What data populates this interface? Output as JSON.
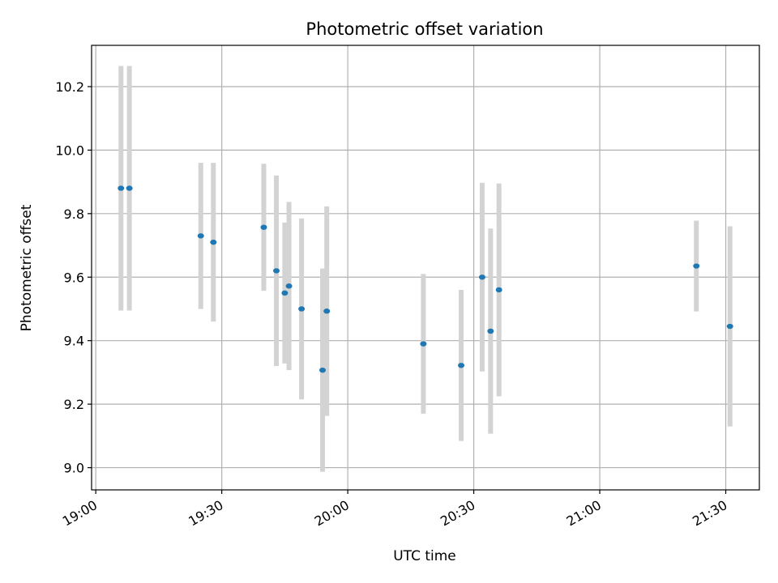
{
  "chart_data": {
    "type": "scatter",
    "title": "Photometric offset variation",
    "xlabel": "UTC time",
    "ylabel": "Photometric offset",
    "xlim": [
      "18:59",
      "21:38"
    ],
    "ylim": [
      8.93,
      10.33
    ],
    "x_ticks": [
      "19:00",
      "19:30",
      "20:00",
      "20:30",
      "21:00",
      "21:30"
    ],
    "y_ticks": [
      9.0,
      9.2,
      9.4,
      9.6,
      9.8,
      10.0,
      10.2
    ],
    "grid": true,
    "point_color": "#1f77b4",
    "errorbar_color": "#d3d3d3",
    "points": [
      {
        "x": "19:06",
        "y": 9.88,
        "err": 0.385
      },
      {
        "x": "19:08",
        "y": 9.88,
        "err": 0.385
      },
      {
        "x": "19:25",
        "y": 9.73,
        "err": 0.23
      },
      {
        "x": "19:28",
        "y": 9.71,
        "err": 0.25
      },
      {
        "x": "19:40",
        "y": 9.757,
        "err": 0.2
      },
      {
        "x": "19:43",
        "y": 9.62,
        "err": 0.3
      },
      {
        "x": "19:45",
        "y": 9.55,
        "err": 0.222
      },
      {
        "x": "19:46",
        "y": 9.572,
        "err": 0.265
      },
      {
        "x": "19:49",
        "y": 9.5,
        "err": 0.285
      },
      {
        "x": "19:54",
        "y": 9.307,
        "err": 0.32
      },
      {
        "x": "19:55",
        "y": 9.493,
        "err": 0.33
      },
      {
        "x": "20:18",
        "y": 9.39,
        "err": 0.22
      },
      {
        "x": "20:27",
        "y": 9.322,
        "err": 0.238
      },
      {
        "x": "20:32",
        "y": 9.6,
        "err": 0.297
      },
      {
        "x": "20:34",
        "y": 9.43,
        "err": 0.323
      },
      {
        "x": "20:36",
        "y": 9.56,
        "err": 0.335
      },
      {
        "x": "21:23",
        "y": 9.635,
        "err": 0.143
      },
      {
        "x": "21:31",
        "y": 9.445,
        "err": 0.315
      }
    ]
  }
}
